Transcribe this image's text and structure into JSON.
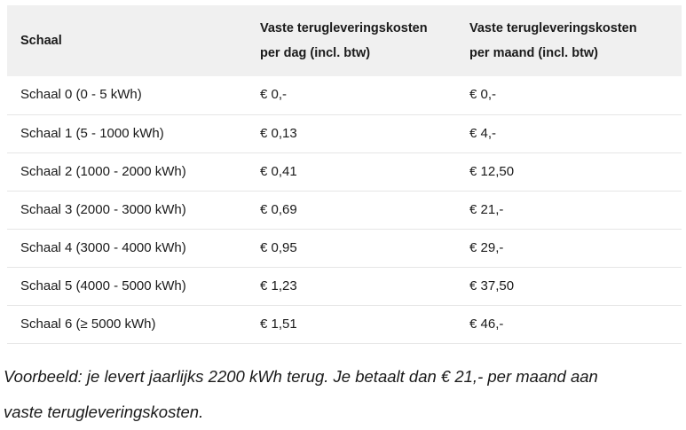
{
  "table": {
    "headers": [
      [
        "Schaal"
      ],
      [
        "Vaste terugleveringskosten",
        "per dag (incl. btw)"
      ],
      [
        "Vaste terugleveringskosten",
        "per maand (incl. btw)"
      ]
    ],
    "rows": [
      [
        "Schaal 0 (0 - 5 kWh)",
        "€ 0,-",
        "€ 0,-"
      ],
      [
        "Schaal 1 (5 - 1000 kWh)",
        "€ 0,13",
        "€ 4,-"
      ],
      [
        "Schaal 2 (1000 - 2000 kWh)",
        "€ 0,41",
        "€ 12,50"
      ],
      [
        "Schaal 3 (2000 - 3000 kWh)",
        "€ 0,69",
        "€ 21,-"
      ],
      [
        "Schaal 4 (3000 - 4000 kWh)",
        "€ 0,95",
        "€ 29,-"
      ],
      [
        "Schaal 5 (4000 - 5000 kWh)",
        "€ 1,23",
        "€ 37,50"
      ],
      [
        "Schaal 6 (≥ 5000 kWh)",
        "€ 1,51",
        "€ 46,-"
      ]
    ]
  },
  "note": {
    "line1": "Voorbeeld: je levert jaarlijks 2200 kWh terug. Je betaalt dan € 21,- per maand aan",
    "line2": "vaste terugleveringskosten."
  }
}
